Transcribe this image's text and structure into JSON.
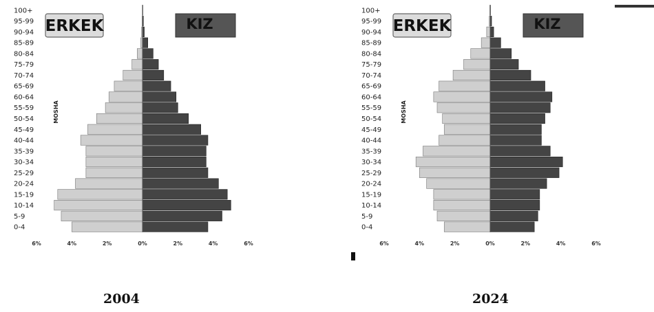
{
  "chart_data": [
    {
      "type": "bar",
      "subtype": "population-pyramid",
      "title": "2004",
      "ylabel": "MOSHA",
      "legend": {
        "male": "ERKEK",
        "female": "KIZ"
      },
      "categories": [
        "0-4",
        "5-9",
        "10-14",
        "15-19",
        "20-24",
        "25-29",
        "30-34",
        "35-39",
        "40-44",
        "45-49",
        "50-54",
        "55-59",
        "60-64",
        "65-69",
        "70-74",
        "75-79",
        "80-84",
        "85-89",
        "90-94",
        "95-99",
        "100+"
      ],
      "series": [
        {
          "name": "ERKEK",
          "values": [
            4.0,
            4.6,
            5.0,
            4.8,
            3.8,
            3.2,
            3.2,
            3.2,
            3.5,
            3.1,
            2.6,
            2.1,
            1.9,
            1.6,
            1.1,
            0.6,
            0.3,
            0.1,
            0.05,
            0.02,
            0.01
          ]
        },
        {
          "name": "KIZ",
          "values": [
            3.7,
            4.5,
            5.0,
            4.8,
            4.3,
            3.7,
            3.6,
            3.6,
            3.7,
            3.3,
            2.6,
            2.0,
            1.9,
            1.6,
            1.2,
            0.9,
            0.6,
            0.3,
            0.1,
            0.05,
            0.02
          ]
        }
      ],
      "xticks": [
        "6%",
        "4%",
        "2%",
        "0%",
        "2%",
        "4%",
        "6%"
      ],
      "xlim": [
        -6,
        6
      ],
      "colors": {
        "male": "#cfcfcf",
        "female": "#444444"
      },
      "grid": false
    },
    {
      "type": "bar",
      "subtype": "population-pyramid",
      "title": "2024",
      "ylabel": "MOSHA",
      "legend": {
        "male": "ERKEK",
        "female": "KIZ"
      },
      "categories": [
        "0-4",
        "5-9",
        "10-14",
        "15-19",
        "20-24",
        "25-29",
        "30-34",
        "35-39",
        "40-44",
        "45-49",
        "50-54",
        "55-59",
        "60-64",
        "65-69",
        "70-74",
        "75-79",
        "80-84",
        "85-89",
        "90-94",
        "95-99",
        "100+"
      ],
      "series": [
        {
          "name": "ERKEK",
          "values": [
            2.6,
            3.0,
            3.2,
            3.2,
            3.6,
            4.0,
            4.2,
            3.8,
            2.9,
            2.6,
            2.7,
            3.0,
            3.2,
            2.9,
            2.1,
            1.5,
            1.1,
            0.5,
            0.2,
            0.05,
            0.02
          ]
        },
        {
          "name": "KIZ",
          "values": [
            2.5,
            2.7,
            2.8,
            2.8,
            3.2,
            3.9,
            4.1,
            3.4,
            2.9,
            2.9,
            3.1,
            3.4,
            3.5,
            3.1,
            2.3,
            1.6,
            1.2,
            0.6,
            0.2,
            0.08,
            0.02
          ]
        }
      ],
      "xticks": [
        "6%",
        "4%",
        "2%",
        "0%",
        "2%",
        "4%",
        "6%"
      ],
      "xlim": [
        -6,
        6
      ],
      "colors": {
        "male": "#cfcfcf",
        "female": "#444444"
      },
      "grid": false
    }
  ]
}
